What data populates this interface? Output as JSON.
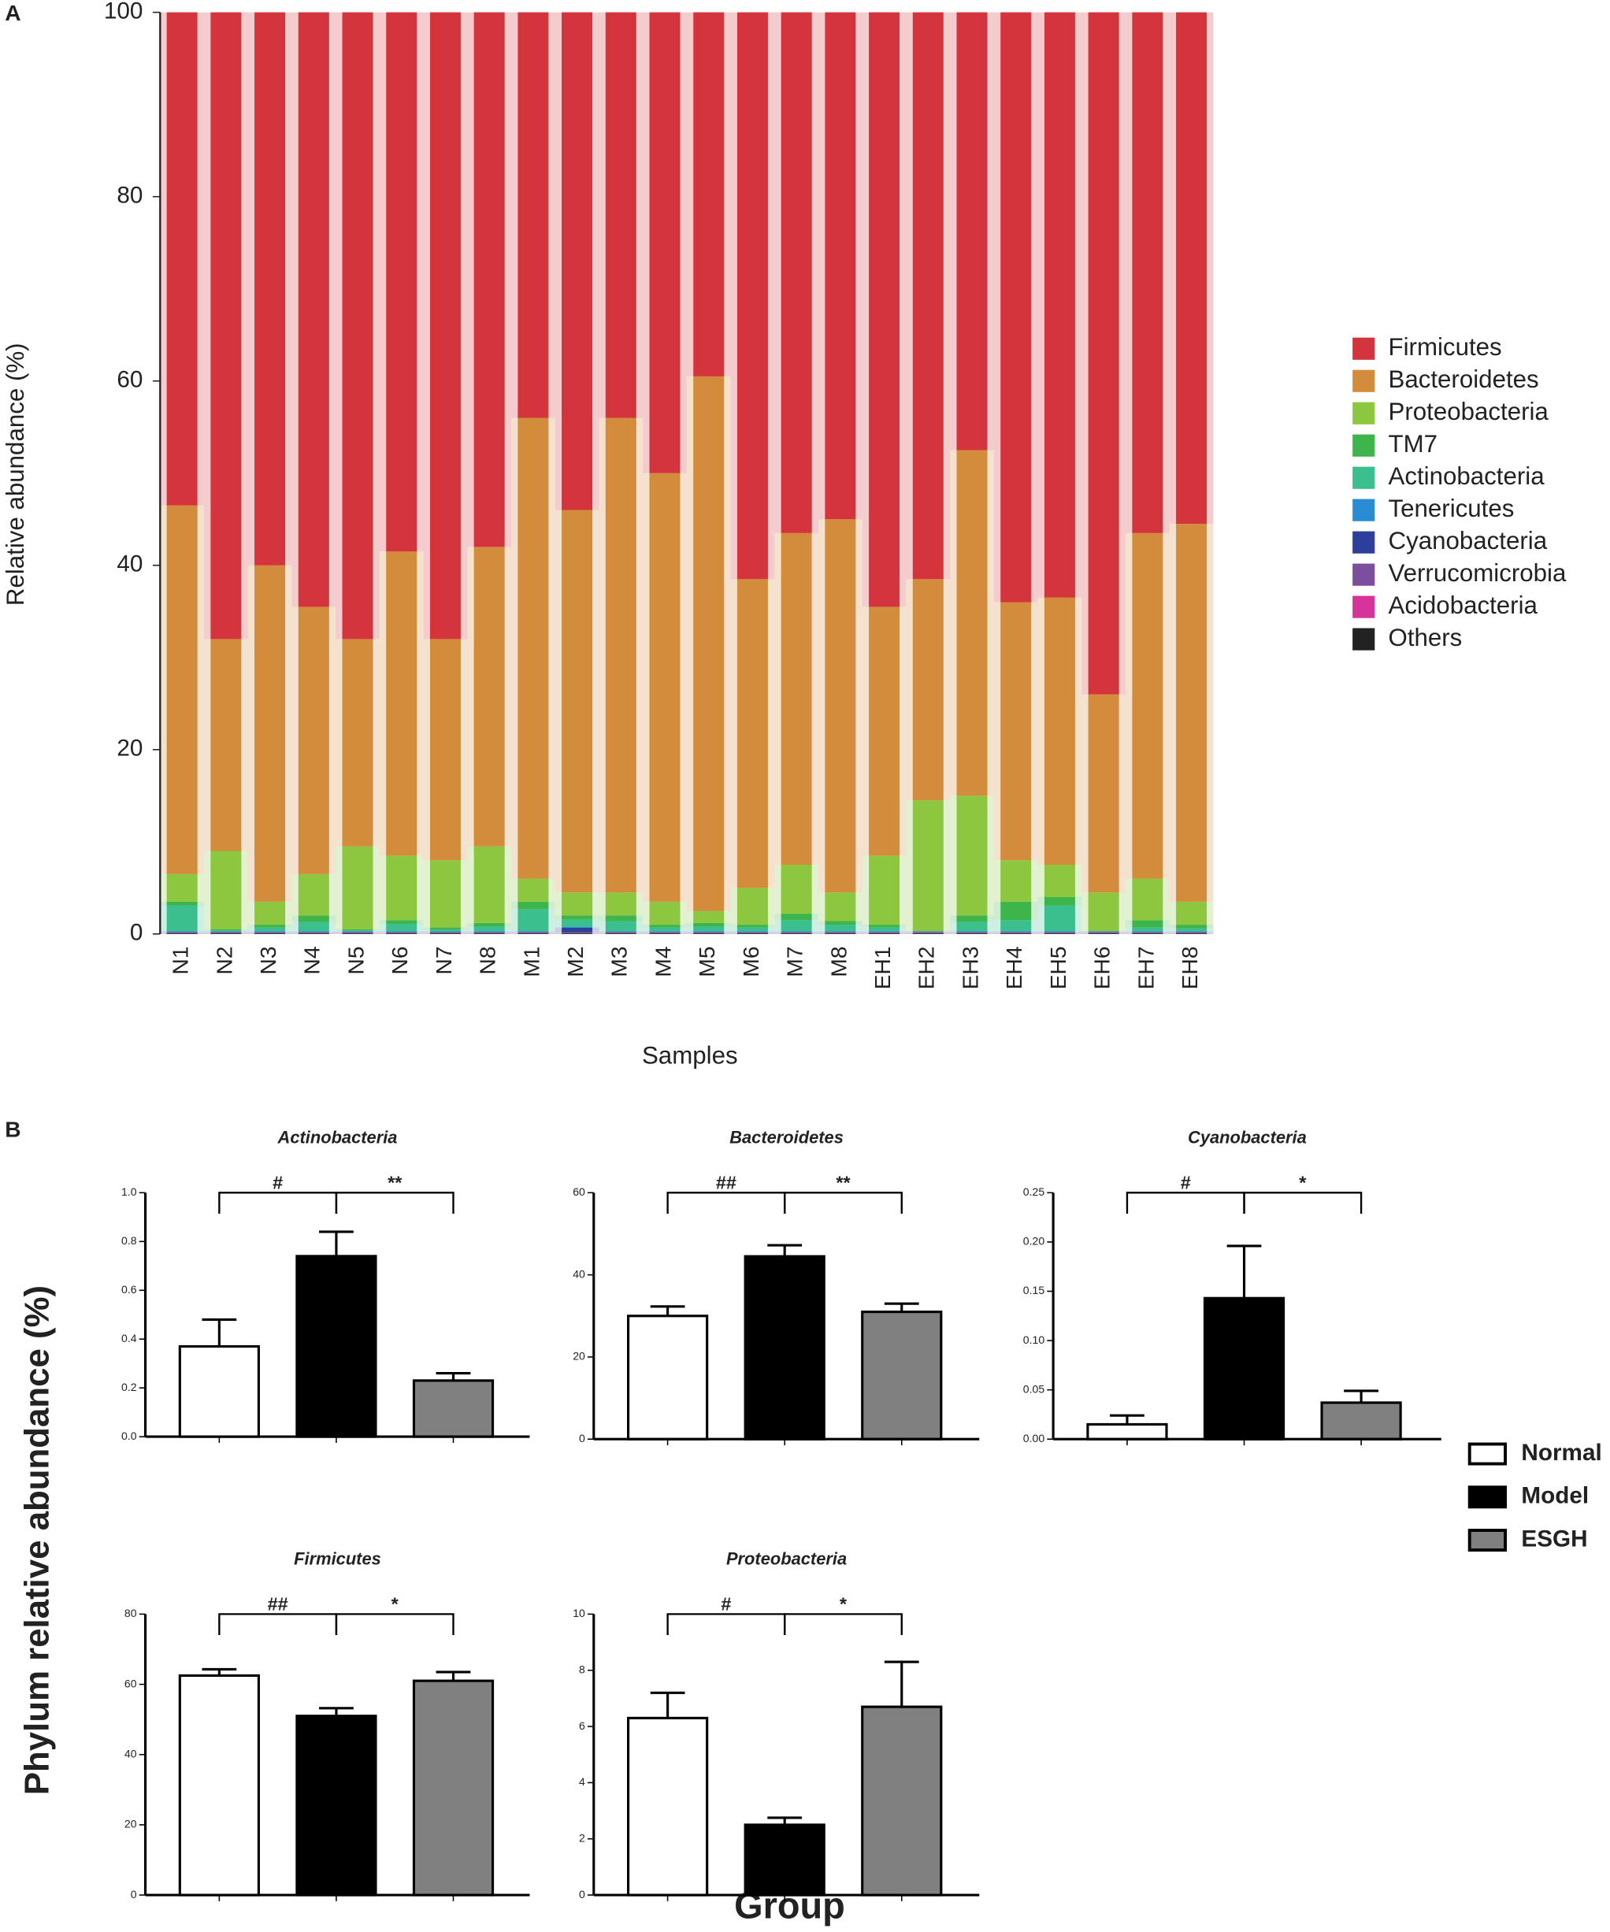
{
  "panel_labels": [
    "A",
    "B"
  ],
  "chart_data": [
    {
      "type": "stacked_bar",
      "y_label": "Relative abundance (%)",
      "x_label": "Samples",
      "categories": [
        "N1",
        "N2",
        "N3",
        "N4",
        "N5",
        "N6",
        "N7",
        "N8",
        "M1",
        "M2",
        "M3",
        "M4",
        "M5",
        "M6",
        "M7",
        "M8",
        "EH1",
        "EH2",
        "EH3",
        "EH4",
        "EH5",
        "EH6",
        "EH7",
        "EH8"
      ],
      "ylim": [
        0,
        100
      ],
      "yticks": [
        0,
        20,
        40,
        60,
        80,
        100
      ],
      "series": [
        {
          "name": "Firmicutes",
          "color": "#d4343c",
          "values": [
            53.5,
            68,
            60,
            64.5,
            68,
            58.5,
            68,
            58,
            44,
            54,
            44,
            50,
            39.5,
            61.5,
            56.5,
            55,
            64.5,
            61.5,
            47.5,
            64,
            63.5,
            74,
            56.5,
            55.5
          ]
        },
        {
          "name": "Bacteroidetes",
          "color": "#d38b3c",
          "values": [
            40,
            23,
            36.5,
            29,
            22.5,
            33,
            24,
            32.5,
            50,
            41.5,
            51.5,
            46.5,
            58,
            33.5,
            36,
            40.5,
            27,
            24,
            37.5,
            28,
            29,
            21.5,
            37.5,
            41
          ]
        },
        {
          "name": "Proteobacteria",
          "color": "#8dc63f",
          "values": [
            3,
            8.5,
            2.5,
            4.5,
            9,
            7,
            7.3,
            8.3,
            2.5,
            2.5,
            2.5,
            2.5,
            1.3,
            4,
            5.3,
            3.1,
            7.5,
            14.2,
            13,
            4.5,
            3.5,
            4.2,
            4.5,
            2.5
          ]
        },
        {
          "name": "TM7",
          "color": "#3db54a",
          "values": [
            0.4,
            0.1,
            0.3,
            0.7,
            0.1,
            0.4,
            0.2,
            0.4,
            0.8,
            0.45,
            0.6,
            0.3,
            0.4,
            0.3,
            0.7,
            0.4,
            0.3,
            0,
            0.7,
            2,
            0.9,
            0,
            0.8,
            0.4
          ]
        },
        {
          "name": "Actinobacteria",
          "color": "#3bbf8e",
          "values": [
            2.8,
            0.1,
            0.4,
            1,
            0.1,
            0.8,
            0.2,
            0.5,
            2.4,
            0.8,
            1.1,
            0.4,
            0.5,
            0.4,
            1.2,
            0.7,
            0.4,
            0,
            1,
            1.2,
            2.8,
            0,
            0.4,
            0.3
          ]
        },
        {
          "name": "Tenericutes",
          "color": "#2a8dd4",
          "values": [
            0.08,
            0.08,
            0.08,
            0.08,
            0.08,
            0.08,
            0.08,
            0.08,
            0.08,
            0.08,
            0.08,
            0.08,
            0.08,
            0.08,
            0.08,
            0.08,
            0.08,
            0.08,
            0.08,
            0.08,
            0.08,
            0.08,
            0.08,
            0.08
          ]
        },
        {
          "name": "Cyanobacteria",
          "color": "#2e3f9b",
          "values": [
            0.05,
            0.05,
            0.05,
            0.05,
            0.05,
            0.05,
            0.05,
            0.05,
            0.05,
            0.5,
            0.05,
            0.05,
            0.05,
            0.05,
            0.05,
            0.05,
            0.05,
            0.05,
            0.05,
            0.05,
            0.05,
            0.05,
            0.05,
            0.05
          ]
        },
        {
          "name": "Verrucomicrobia",
          "color": "#7b4f9d",
          "values": [
            0.05,
            0.05,
            0.05,
            0.05,
            0.05,
            0.05,
            0.05,
            0.05,
            0.05,
            0.05,
            0.05,
            0.05,
            0.05,
            0.05,
            0.05,
            0.05,
            0.05,
            0.05,
            0.05,
            0.05,
            0.05,
            0.05,
            0.05,
            0.05
          ]
        },
        {
          "name": "Acidobacteria",
          "color": "#d6339b",
          "values": [
            0.02,
            0.02,
            0.02,
            0.02,
            0.02,
            0.02,
            0.02,
            0.02,
            0.02,
            0.02,
            0.02,
            0.02,
            0.02,
            0.02,
            0.02,
            0.02,
            0.02,
            0.02,
            0.02,
            0.02,
            0.02,
            0.02,
            0.02,
            0.02
          ]
        },
        {
          "name": "Others",
          "color": "#222222",
          "values": [
            0.1,
            0.1,
            0.1,
            0.1,
            0.1,
            0.1,
            0.1,
            0.1,
            0.1,
            0.1,
            0.1,
            0.1,
            0.1,
            0.1,
            0.1,
            0.1,
            0.1,
            0.1,
            0.1,
            0.1,
            0.1,
            0.1,
            0.1,
            0.1
          ]
        }
      ]
    },
    {
      "type": "bar",
      "title": "Actinobacteria",
      "values": [
        0.37,
        0.74,
        0.23
      ],
      "errors": [
        0.11,
        0.1,
        0.03
      ],
      "ylim": [
        0,
        1
      ],
      "yticks": [
        {
          "value": 0,
          "label": "0.0"
        },
        0.2,
        0.4,
        0.6,
        0.8,
        {
          "value": 1,
          "label": "1.0"
        }
      ],
      "annotations": [
        "#",
        "**"
      ]
    },
    {
      "type": "bar",
      "title": "Bacteroidetes",
      "values": [
        30,
        44.5,
        31
      ],
      "errors": [
        2.3,
        2.7,
        2
      ],
      "ylim": [
        0,
        60
      ],
      "yticks": [
        0,
        20,
        40,
        60
      ],
      "annotations": [
        "##",
        "**"
      ]
    },
    {
      "type": "bar",
      "title": "Cyanobacteria",
      "values": [
        0.015,
        0.143,
        0.037
      ],
      "errors": [
        0.009,
        0.053,
        0.012
      ],
      "ylim": [
        0,
        0.25
      ],
      "yticks": [
        {
          "value": 0,
          "label": "0.00"
        },
        0.05,
        {
          "value": 0.1,
          "label": "0.10"
        },
        0.15,
        {
          "value": 0.2,
          "label": "0.20"
        },
        0.25
      ],
      "annotations": [
        "#",
        "*"
      ]
    },
    {
      "type": "bar",
      "title": "Firmicutes",
      "values": [
        62.5,
        51,
        61
      ],
      "errors": [
        1.8,
        2.2,
        2.5
      ],
      "ylim": [
        0,
        80
      ],
      "yticks": [
        0,
        20,
        40,
        60,
        80
      ],
      "annotations": [
        "##",
        "*"
      ]
    },
    {
      "type": "bar",
      "title": "Proteobacteria",
      "values": [
        6.3,
        2.5,
        6.7
      ],
      "errors": [
        0.9,
        0.25,
        1.6
      ],
      "ylim": [
        0,
        10
      ],
      "yticks": [
        0,
        2,
        4,
        6,
        8,
        10
      ],
      "annotations": [
        "#",
        "*"
      ]
    }
  ],
  "panel_b": {
    "y_label": "Phylum relative abundance (%)",
    "x_label": "Group",
    "groups": [
      {
        "name": "Normal",
        "color": "#ffffff"
      },
      {
        "name": "Model",
        "color": "#000000"
      },
      {
        "name": "ESGH",
        "color": "#808080"
      }
    ]
  }
}
